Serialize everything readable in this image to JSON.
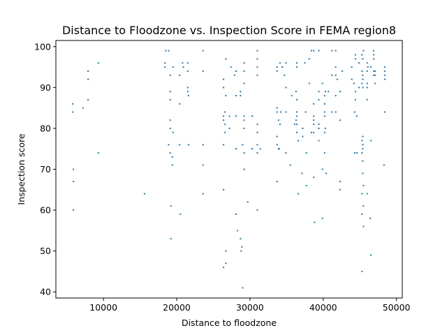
{
  "chart_data": {
    "type": "scatter",
    "title": "Distance to Floodzone vs. Inspection Score in FEMA region8",
    "xlabel": "Distance to floodzone",
    "ylabel": "Inspection score",
    "xlim": [
      3500,
      50800
    ],
    "ylim": [
      38.5,
      101.5
    ],
    "xticks": [
      10000,
      20000,
      30000,
      40000,
      50000
    ],
    "yticks": [
      40,
      50,
      60,
      70,
      80,
      90,
      100
    ],
    "grid": false,
    "color": "#1f77b4",
    "points": [
      [
        5800,
        86
      ],
      [
        5800,
        84
      ],
      [
        5900,
        70
      ],
      [
        5900,
        67
      ],
      [
        5900,
        60
      ],
      [
        7200,
        85
      ],
      [
        7900,
        94
      ],
      [
        7900,
        92
      ],
      [
        7900,
        87
      ],
      [
        9300,
        96
      ],
      [
        9300,
        74
      ],
      [
        15600,
        64
      ],
      [
        18400,
        96
      ],
      [
        18400,
        95
      ],
      [
        18500,
        99
      ],
      [
        18900,
        99
      ],
      [
        18900,
        76
      ],
      [
        19100,
        93
      ],
      [
        19100,
        89
      ],
      [
        19100,
        87
      ],
      [
        19100,
        82
      ],
      [
        19100,
        80
      ],
      [
        19100,
        74
      ],
      [
        19200,
        61
      ],
      [
        19200,
        53
      ],
      [
        19400,
        73
      ],
      [
        19400,
        71
      ],
      [
        19500,
        95
      ],
      [
        19500,
        79
      ],
      [
        20400,
        93
      ],
      [
        20400,
        86
      ],
      [
        20400,
        76
      ],
      [
        20500,
        59
      ],
      [
        20800,
        96
      ],
      [
        20900,
        95
      ],
      [
        21500,
        96
      ],
      [
        21500,
        94
      ],
      [
        21500,
        90
      ],
      [
        21500,
        89
      ],
      [
        21600,
        88
      ],
      [
        21600,
        76
      ],
      [
        23600,
        99
      ],
      [
        23600,
        94
      ],
      [
        23600,
        76
      ],
      [
        23600,
        71
      ],
      [
        23600,
        64
      ],
      [
        26400,
        92
      ],
      [
        26400,
        90
      ],
      [
        26400,
        83
      ],
      [
        26400,
        82
      ],
      [
        26400,
        76
      ],
      [
        26400,
        65
      ],
      [
        26400,
        46
      ],
      [
        26600,
        84
      ],
      [
        26600,
        81
      ],
      [
        26600,
        79
      ],
      [
        26700,
        97
      ],
      [
        26700,
        88
      ],
      [
        26700,
        50
      ],
      [
        26700,
        47
      ],
      [
        27200,
        80
      ],
      [
        27200,
        83
      ],
      [
        27400,
        95
      ],
      [
        27900,
        93
      ],
      [
        28100,
        94
      ],
      [
        28100,
        88
      ],
      [
        28100,
        83
      ],
      [
        28100,
        75
      ],
      [
        28100,
        59
      ],
      [
        28300,
        55
      ],
      [
        28700,
        89
      ],
      [
        28700,
        88
      ],
      [
        28700,
        53
      ],
      [
        28800,
        50
      ],
      [
        28900,
        51
      ],
      [
        29000,
        76
      ],
      [
        29000,
        41
      ],
      [
        29200,
        96
      ],
      [
        29200,
        94
      ],
      [
        29200,
        91
      ],
      [
        29200,
        83
      ],
      [
        29200,
        82
      ],
      [
        29200,
        80
      ],
      [
        29200,
        74
      ],
      [
        29200,
        70
      ],
      [
        29700,
        62
      ],
      [
        30300,
        75
      ],
      [
        30300,
        83
      ],
      [
        31000,
        99
      ],
      [
        31000,
        97
      ],
      [
        31000,
        95
      ],
      [
        31000,
        93
      ],
      [
        31000,
        81
      ],
      [
        31000,
        79
      ],
      [
        31000,
        76
      ],
      [
        31000,
        74
      ],
      [
        31000,
        60
      ],
      [
        31400,
        75
      ],
      [
        33700,
        95
      ],
      [
        33700,
        94
      ],
      [
        33700,
        85
      ],
      [
        33700,
        84
      ],
      [
        33700,
        78
      ],
      [
        33700,
        76
      ],
      [
        33700,
        67
      ],
      [
        33900,
        82
      ],
      [
        33900,
        75
      ],
      [
        34000,
        75
      ],
      [
        34100,
        96
      ],
      [
        34100,
        81
      ],
      [
        34200,
        84
      ],
      [
        34400,
        95
      ],
      [
        34700,
        93
      ],
      [
        34900,
        96
      ],
      [
        34900,
        90
      ],
      [
        34900,
        84
      ],
      [
        34900,
        74
      ],
      [
        35500,
        71
      ],
      [
        35700,
        88
      ],
      [
        36100,
        81
      ],
      [
        36300,
        89
      ],
      [
        36300,
        82
      ],
      [
        36400,
        96
      ],
      [
        36400,
        95
      ],
      [
        36400,
        87
      ],
      [
        36400,
        84
      ],
      [
        36400,
        83
      ],
      [
        36400,
        81
      ],
      [
        36400,
        79
      ],
      [
        36600,
        77
      ],
      [
        36600,
        64
      ],
      [
        37100,
        69
      ],
      [
        37200,
        80
      ],
      [
        37200,
        78
      ],
      [
        37500,
        96
      ],
      [
        37600,
        84
      ],
      [
        37700,
        74
      ],
      [
        37700,
        66
      ],
      [
        38100,
        97
      ],
      [
        38100,
        91
      ],
      [
        38400,
        99
      ],
      [
        38400,
        79
      ],
      [
        38700,
        99
      ],
      [
        38700,
        86
      ],
      [
        38700,
        83
      ],
      [
        38700,
        82
      ],
      [
        38700,
        81
      ],
      [
        38700,
        79
      ],
      [
        38700,
        68
      ],
      [
        38800,
        57
      ],
      [
        39400,
        99
      ],
      [
        39400,
        89
      ],
      [
        39400,
        87
      ],
      [
        39400,
        81
      ],
      [
        39400,
        80
      ],
      [
        39400,
        77
      ],
      [
        39900,
        91
      ],
      [
        39900,
        70
      ],
      [
        39900,
        58
      ],
      [
        40200,
        88
      ],
      [
        40200,
        86
      ],
      [
        40200,
        84
      ],
      [
        40200,
        83
      ],
      [
        40200,
        79
      ],
      [
        40200,
        74
      ],
      [
        40300,
        89
      ],
      [
        40300,
        80
      ],
      [
        40400,
        69
      ],
      [
        40700,
        89
      ],
      [
        41200,
        99
      ],
      [
        41200,
        93
      ],
      [
        41200,
        84
      ],
      [
        41700,
        99
      ],
      [
        41700,
        95
      ],
      [
        41700,
        93
      ],
      [
        41700,
        88
      ],
      [
        41700,
        84
      ],
      [
        41900,
        92
      ],
      [
        42300,
        89
      ],
      [
        42300,
        82
      ],
      [
        42300,
        67
      ],
      [
        42300,
        65
      ],
      [
        42600,
        94
      ],
      [
        43900,
        95
      ],
      [
        43900,
        92
      ],
      [
        44200,
        91
      ],
      [
        44300,
        84
      ],
      [
        44300,
        74
      ],
      [
        44400,
        98
      ],
      [
        44400,
        97
      ],
      [
        44400,
        89
      ],
      [
        44400,
        87
      ],
      [
        44600,
        74
      ],
      [
        44600,
        83
      ],
      [
        44900,
        96
      ],
      [
        44900,
        90
      ],
      [
        45300,
        98
      ],
      [
        45300,
        94
      ],
      [
        45300,
        91
      ],
      [
        45300,
        77
      ],
      [
        45300,
        74
      ],
      [
        45300,
        64
      ],
      [
        45300,
        59
      ],
      [
        45300,
        45
      ],
      [
        45400,
        97
      ],
      [
        45400,
        93
      ],
      [
        45400,
        92
      ],
      [
        45400,
        90
      ],
      [
        45400,
        78
      ],
      [
        45400,
        76
      ],
      [
        45400,
        75
      ],
      [
        45400,
        72
      ],
      [
        45400,
        69
      ],
      [
        45500,
        99
      ],
      [
        45500,
        66
      ],
      [
        45500,
        61
      ],
      [
        45500,
        56
      ],
      [
        46000,
        96
      ],
      [
        46000,
        94
      ],
      [
        46000,
        91
      ],
      [
        46000,
        90
      ],
      [
        46000,
        87
      ],
      [
        46000,
        64
      ],
      [
        46100,
        95
      ],
      [
        46400,
        58
      ],
      [
        46500,
        95
      ],
      [
        46500,
        77
      ],
      [
        46500,
        49
      ],
      [
        46900,
        99
      ],
      [
        46900,
        98
      ],
      [
        46900,
        97
      ],
      [
        46900,
        94
      ],
      [
        46900,
        93
      ],
      [
        47100,
        94
      ],
      [
        47100,
        93
      ],
      [
        47100,
        91
      ],
      [
        48300,
        71
      ],
      [
        48400,
        95
      ],
      [
        48400,
        94
      ],
      [
        48400,
        93
      ],
      [
        48400,
        92
      ],
      [
        48400,
        84
      ]
    ]
  }
}
